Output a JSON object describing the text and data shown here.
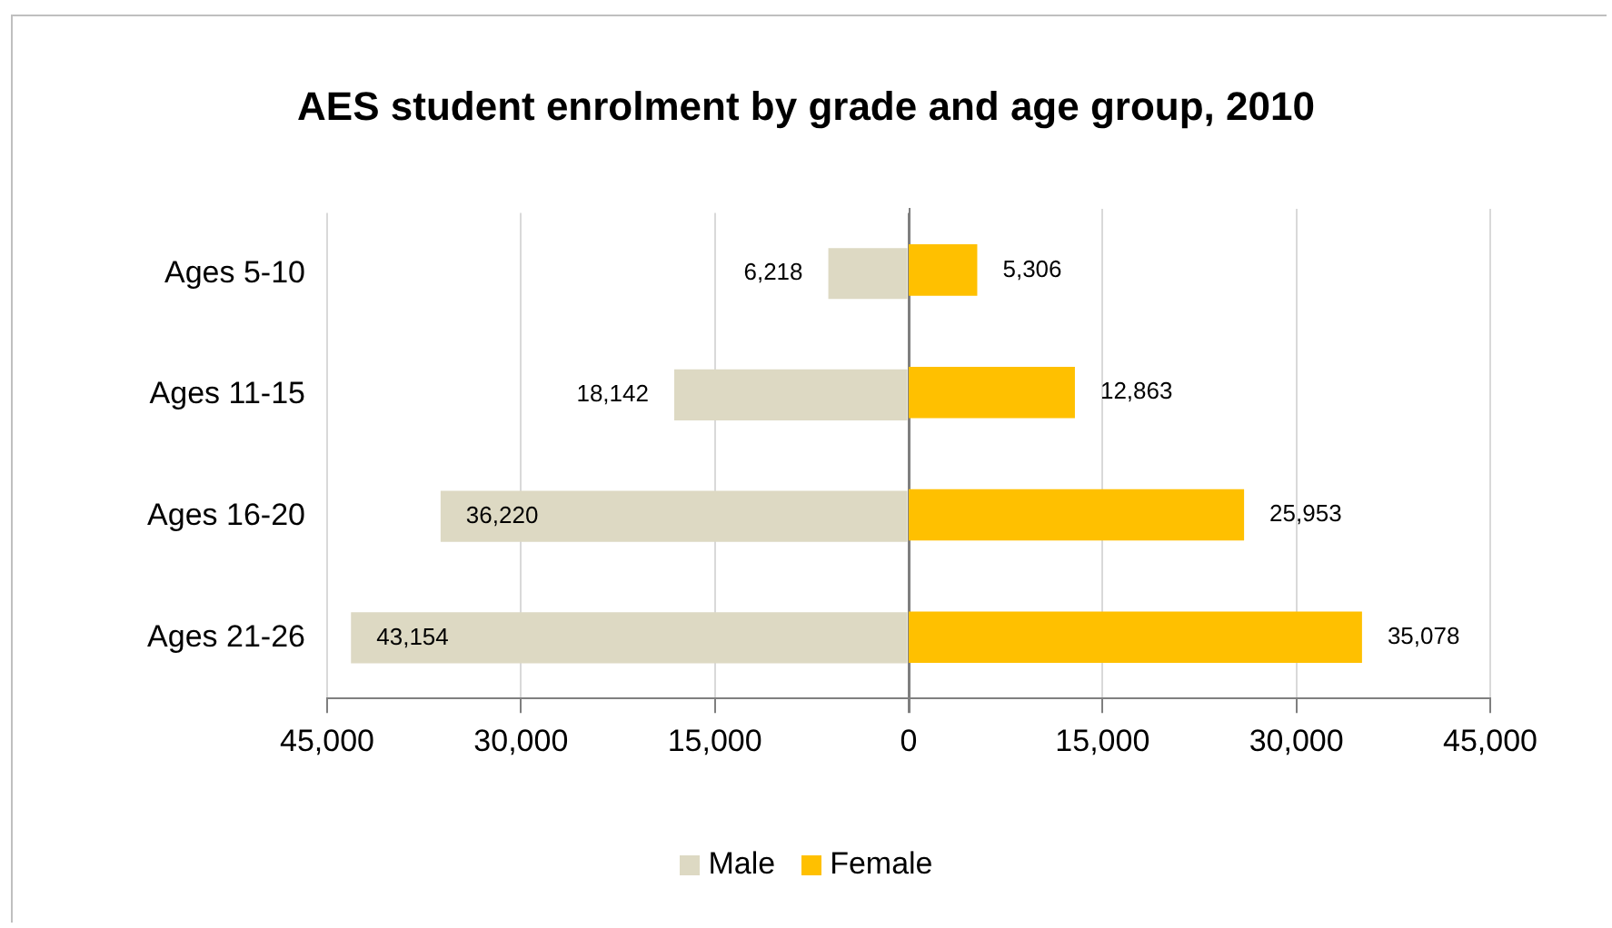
{
  "chart_data": [
    {
      "type": "bar",
      "orientation": "horizontal",
      "title": "AES student enrolment by grade and age group, 2010",
      "categories": [
        "Ages 5-10",
        "Ages 11-15",
        "Ages 16-20",
        "Ages 21-26"
      ],
      "series": [
        {
          "name": "Male",
          "color": "#ddd9c3",
          "values": [
            6218,
            18142,
            36220,
            43154
          ],
          "value_labels": [
            "6,218",
            "18,142",
            "36,220",
            "43,154"
          ]
        }
      ],
      "xlim": [
        45000,
        0
      ],
      "xticks": [
        {
          "value": 45000,
          "label": "45,000"
        },
        {
          "value": 30000,
          "label": "30,000"
        },
        {
          "value": 15000,
          "label": "15,000"
        },
        0
      ],
      "grid": "x",
      "legend": "bottom"
    },
    {
      "type": "bar",
      "orientation": "horizontal",
      "categories": [
        null,
        null,
        null,
        null
      ],
      "series": [
        {
          "name": "Female",
          "color": "#ffc000",
          "values": [
            5306,
            12863,
            25953,
            35078
          ],
          "value_labels": [
            "5,306",
            "12,863",
            "25,953",
            "35,078"
          ]
        }
      ],
      "xlim": [
        0,
        45000
      ],
      "xticks": [
        {
          "value": 15000,
          "label": "15,000"
        },
        {
          "value": 30000,
          "label": "30,000"
        },
        {
          "value": 45000,
          "label": "45,000"
        }
      ],
      "grid": "x",
      "legend": "bottom",
      "tick_labels": "x"
    }
  ]
}
